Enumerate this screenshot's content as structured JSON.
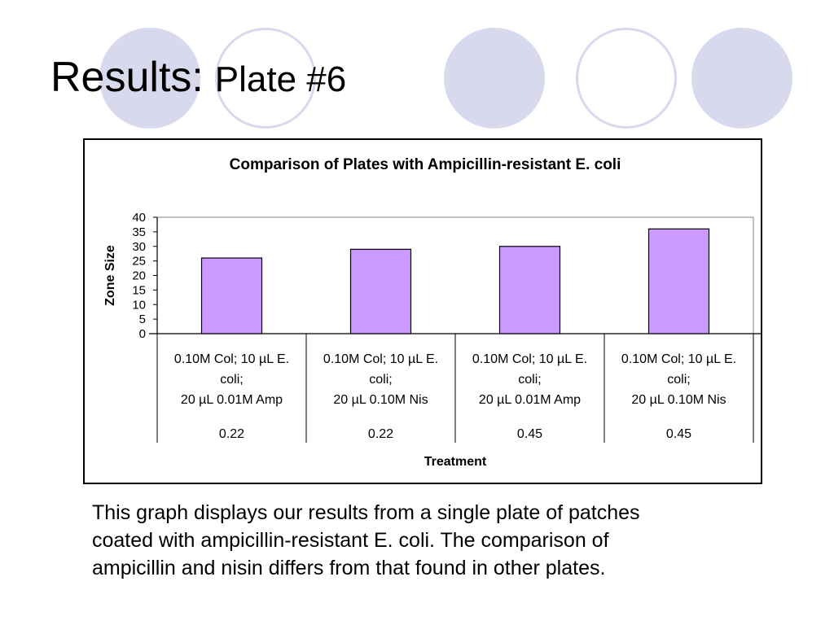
{
  "slide": {
    "title_main": "Results:",
    "title_sub": "Plate #6",
    "caption_lines": [
      "This graph displays our results from a single plate of patches",
      "coated with ampicillin-resistant E. coli.  The comparison of",
      "ampicillin and nisin differs from that found in other plates."
    ],
    "decor_colors": {
      "circle_fill": "#d9d9ee",
      "circle_ring": "#d9d9ee"
    }
  },
  "chart_data": {
    "type": "bar",
    "title": "Comparison of Plates with Ampicillin-resistant E. coli",
    "xlabel": "Treatment",
    "ylabel": "Zone Size",
    "ylim": [
      0,
      40
    ],
    "yticks": [
      0,
      5,
      10,
      15,
      20,
      25,
      30,
      35,
      40
    ],
    "grid": false,
    "legend": "none",
    "bar_color": "#cc99ff",
    "categories": [
      {
        "lines": [
          "0.10M Col; 10 µL E.",
          "coli;",
          "20 µL 0.01M Amp"
        ],
        "sub": "0.22"
      },
      {
        "lines": [
          "0.10M Col; 10 µL E.",
          "coli;",
          "20 µL 0.10M Nis"
        ],
        "sub": "0.22"
      },
      {
        "lines": [
          "0.10M Col; 10 µL E.",
          "coli;",
          "20 µL 0.01M Amp"
        ],
        "sub": "0.45"
      },
      {
        "lines": [
          "0.10M Col; 10 µL E.",
          "coli;",
          "20 µL 0.10M Nis"
        ],
        "sub": "0.45"
      }
    ],
    "values": [
      26,
      29,
      30,
      36
    ]
  }
}
